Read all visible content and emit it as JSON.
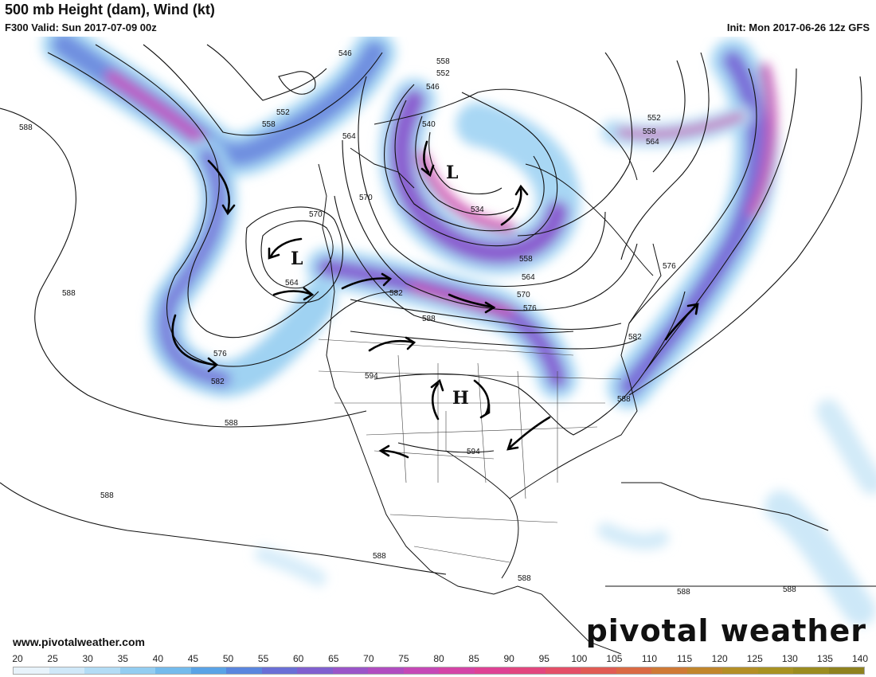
{
  "header": {
    "title": "500 mb Height (dam), Wind (kt)",
    "valid": "F300 Valid: Sun 2017-07-09 00z",
    "init": "Init: Mon 2017-06-26 12z GFS"
  },
  "footer": {
    "url": "www.pivotalweather.com",
    "brand": "pivotal weather"
  },
  "colorbar": {
    "ticks": [
      "20",
      "25",
      "30",
      "35",
      "40",
      "45",
      "50",
      "55",
      "60",
      "65",
      "70",
      "75",
      "80",
      "85",
      "90",
      "95",
      "100",
      "105",
      "110",
      "115",
      "120",
      "125",
      "130",
      "135",
      "140"
    ],
    "colors": [
      "#e8f3fb",
      "#cfe8f8",
      "#b3dcf5",
      "#93cdf1",
      "#74bbec",
      "#5aa3e6",
      "#5a86de",
      "#6a6fd6",
      "#8060cf",
      "#9a55c8",
      "#b04dc0",
      "#c548b6",
      "#d444a6",
      "#de4294",
      "#e2467e",
      "#e44f68",
      "#e15b54",
      "#da6a44",
      "#cf7a36",
      "#c1862c",
      "#b48f26",
      "#a89222",
      "#9b8c20",
      "#8f821f"
    ]
  },
  "map": {
    "contour_labels": [
      "546",
      "552",
      "558",
      "564",
      "570",
      "576",
      "582",
      "588",
      "594",
      "540",
      "534"
    ],
    "pressure_centers": [
      "L",
      "L",
      "H"
    ],
    "icons": [
      "rotation-arrow-icon"
    ]
  }
}
